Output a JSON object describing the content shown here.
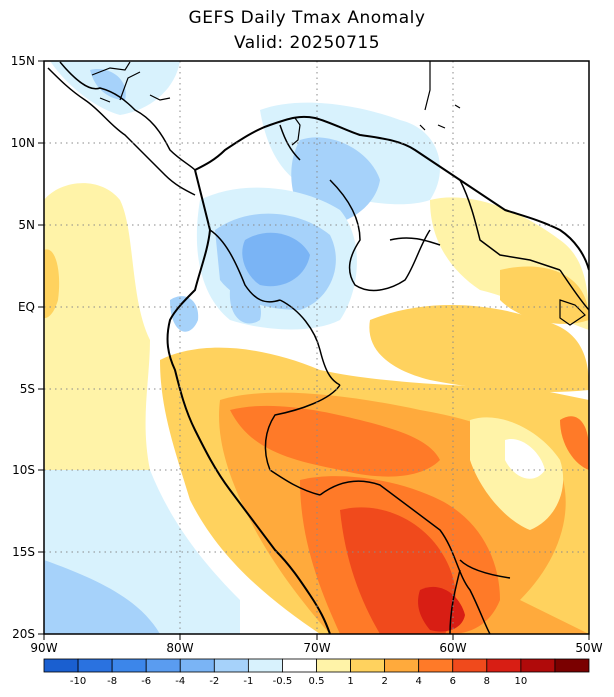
{
  "header": {
    "title": "GEFS Daily Tmax Anomaly",
    "subtitle": "Valid: 20250715"
  },
  "map": {
    "lat_labels": [
      "15N",
      "10N",
      "5N",
      "EQ",
      "5S",
      "10S",
      "15S",
      "20S"
    ],
    "lon_labels": [
      "90W",
      "80W",
      "70W",
      "60W",
      "50W"
    ],
    "extent": {
      "lon": [
        -90,
        -50
      ],
      "lat": [
        -20,
        15
      ]
    }
  },
  "colorbar": {
    "labels": [
      "-10",
      "-8",
      "-6",
      "-4",
      "-2",
      "-1",
      "-0.5",
      "0.5",
      "1",
      "2",
      "4",
      "6",
      "8",
      "10"
    ],
    "colors": [
      "#1a5fd0",
      "#2a72e0",
      "#3c86ea",
      "#5a9cf0",
      "#7ab4f5",
      "#a6d2fa",
      "#d8f2fd",
      "#ffffff",
      "#fff3a8",
      "#ffd25e",
      "#ffaa3c",
      "#ff7a28",
      "#f04a1c",
      "#d81e14",
      "#b00a0a",
      "#7a0000"
    ]
  }
}
